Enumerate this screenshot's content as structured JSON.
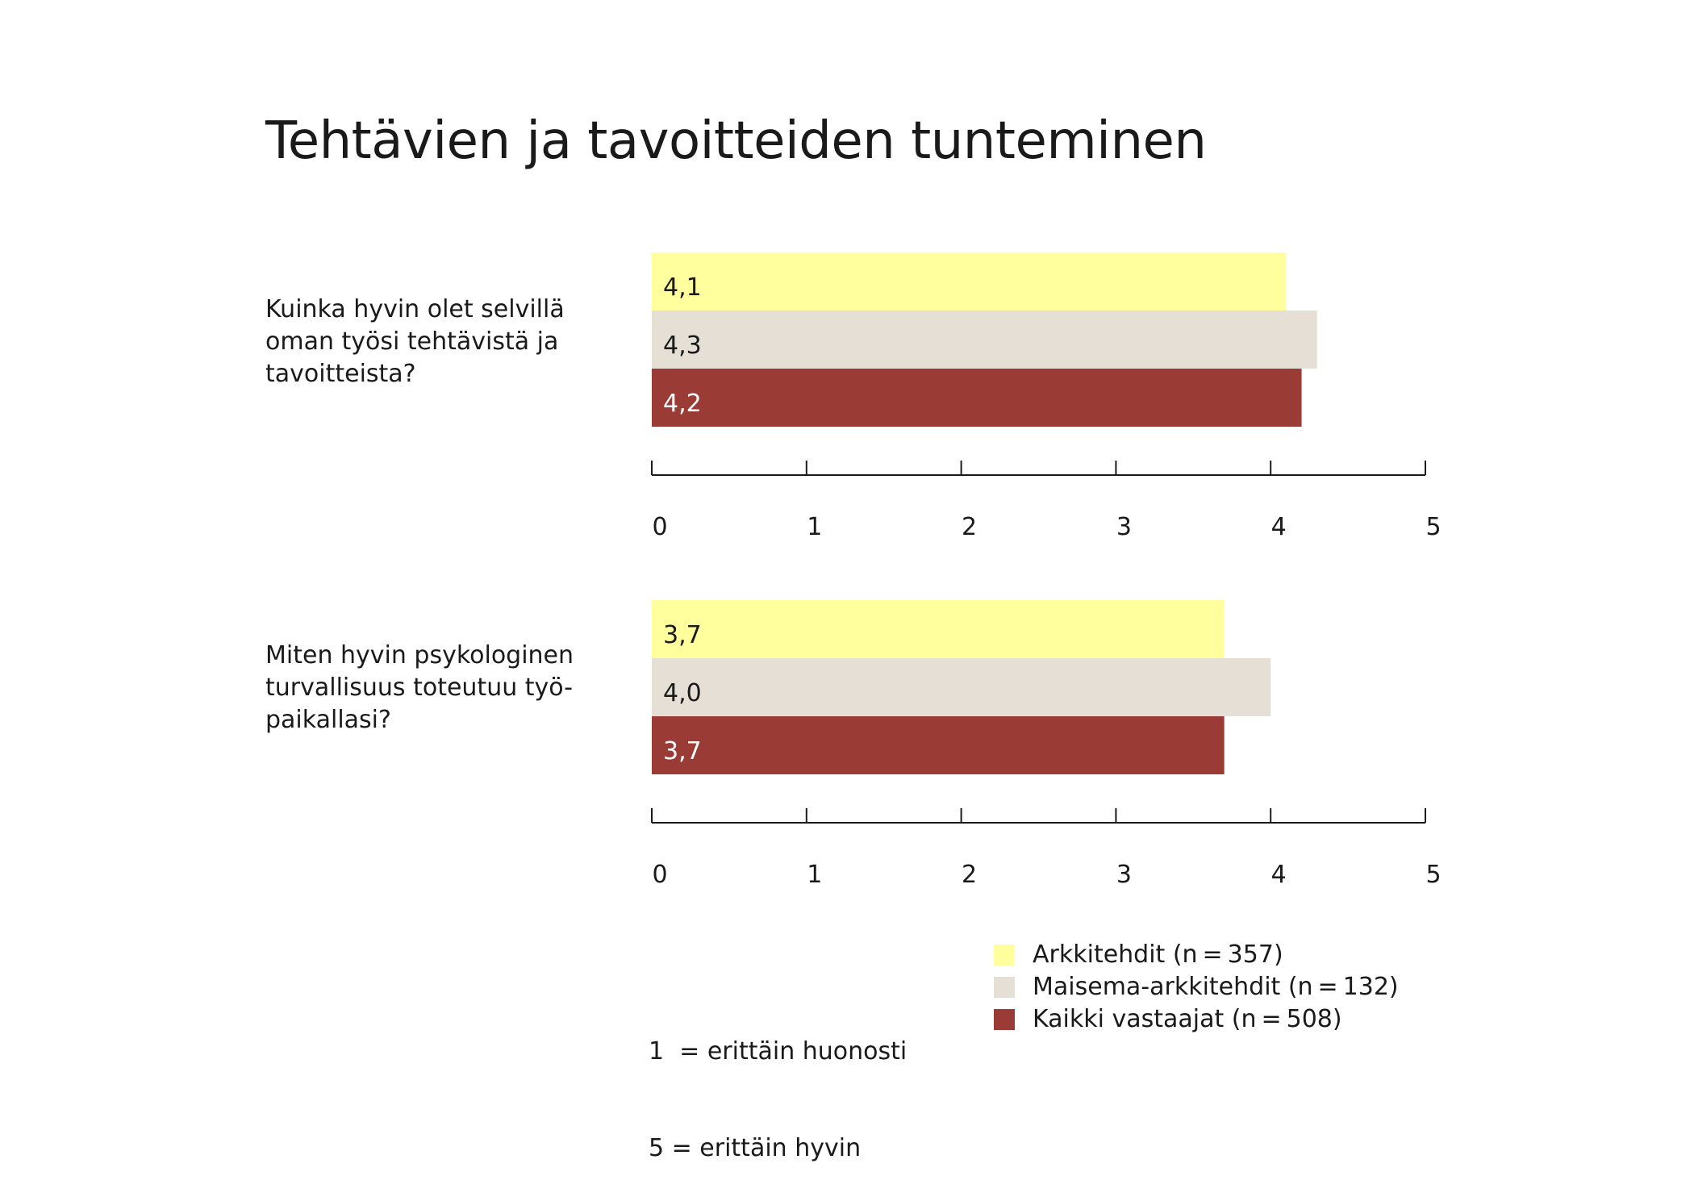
{
  "chart_data": {
    "type": "bar",
    "title": "Tehtävien ja tavoitteiden tunteminen",
    "categories": [
      "Kuinka hyvin olet selvillä oman työsi tehtävistä ja tavoitteista?",
      "Miten hyvin psykologinen turvallisuus toteutuu työ-paikallasi?"
    ],
    "question_lines": [
      [
        "Kuinka hyvin olet selvillä",
        "oman työsi tehtävistä ja",
        "tavoitteista?"
      ],
      [
        "Miten hyvin psykologinen",
        "turvallisuus toteutuu työ-",
        "paikallasi?"
      ]
    ],
    "series": [
      {
        "name": "Arkkitehdit (n = 357)",
        "color": "#ffff9e",
        "values": [
          4.1,
          3.7
        ],
        "labels": [
          "4,1",
          "3,7"
        ],
        "label_color": "#1a1a1a"
      },
      {
        "name": "Maisema-arkkitehdit (n = 132)",
        "color": "#e6dfd5",
        "values": [
          4.3,
          4.0
        ],
        "labels": [
          "4,3",
          "4,0"
        ],
        "label_color": "#1a1a1a"
      },
      {
        "name": "Kaikki vastaajat (n = 508)",
        "color": "#9b3b36",
        "values": [
          4.2,
          3.7
        ],
        "labels": [
          "4,2",
          "3,7"
        ],
        "label_color": "#ffffff"
      }
    ],
    "xlim": [
      0,
      5
    ],
    "xticks": [
      "0",
      "1",
      "2",
      "3",
      "4",
      "5"
    ],
    "orientation": "horizontal",
    "legend": "bottom-right",
    "grid": false
  },
  "scale_note": {
    "line1": "1  = erittäin huonosti",
    "line2": "5 = erittäin hyvin"
  }
}
